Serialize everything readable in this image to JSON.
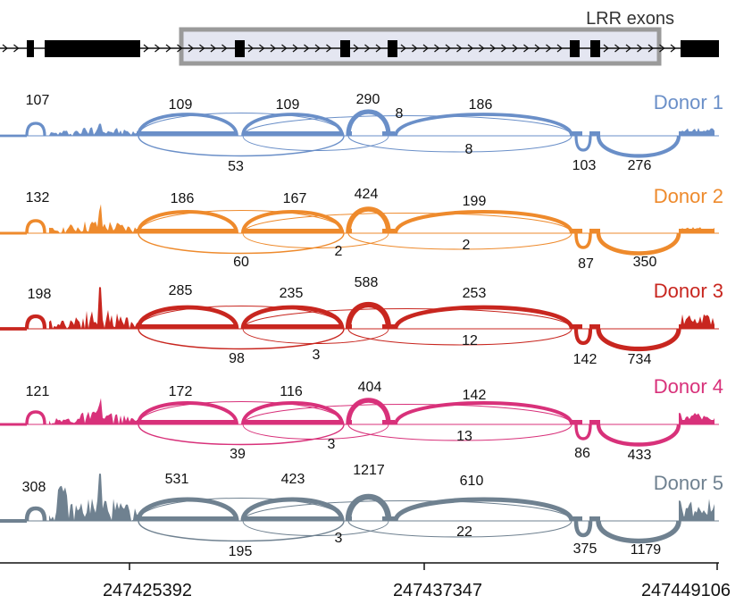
{
  "figure": {
    "gene_model": {
      "highlight_label": "LRR exons"
    },
    "axis": {
      "ticks": [
        "247425392",
        "247437347",
        "247449106"
      ]
    },
    "donors": [
      {
        "name": "Donor 1",
        "color": "#6a8fc8",
        "junction_counts": [
          "107",
          "109",
          "109",
          "290",
          "8",
          "186",
          "53",
          "8",
          "103",
          "276"
        ]
      },
      {
        "name": "Donor 2",
        "color": "#ee8a2c",
        "junction_counts": [
          "132",
          "186",
          "167",
          "424",
          "199",
          "60",
          "2",
          "2",
          "87",
          "350"
        ]
      },
      {
        "name": "Donor 3",
        "color": "#c8261f",
        "junction_counts": [
          "198",
          "285",
          "235",
          "588",
          "253",
          "98",
          "3",
          "12",
          "142",
          "734"
        ]
      },
      {
        "name": "Donor 4",
        "color": "#d8317a",
        "junction_counts": [
          "121",
          "172",
          "116",
          "404",
          "142",
          "39",
          "3",
          "13",
          "86",
          "433"
        ]
      },
      {
        "name": "Donor 5",
        "color": "#6f8190",
        "junction_counts": [
          "308",
          "531",
          "423",
          "1217",
          "610",
          "195",
          "3",
          "22",
          "375",
          "1179"
        ]
      }
    ]
  }
}
